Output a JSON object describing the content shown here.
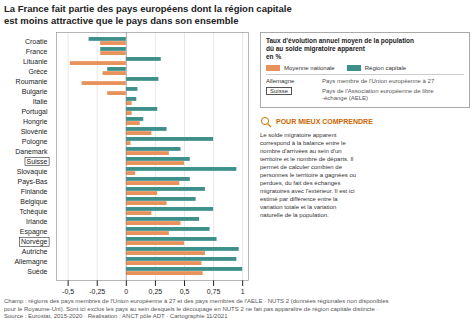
{
  "chart_data": {
    "type": "bar",
    "orientation": "horizontal",
    "title": "La France fait partie des pays européens dont la région capitale\nest moins attractive que le pays dans son ensemble",
    "categories": [
      "Croatie",
      "France",
      "Lituanie",
      "Grèce",
      "Roumanie",
      "Bulgarie",
      "Italie",
      "Portugal",
      "Hongrie",
      "Slovénie",
      "Pologne",
      "Danemark",
      "Suisse",
      "Slovaquie",
      "Pays-Bas",
      "Finlande",
      "Belgique",
      "Tchéquie",
      "Irlande",
      "Espagne",
      "Norvège",
      "Autriche",
      "Allemagne",
      "Suède"
    ],
    "series": [
      {
        "name": "Moyenne nationale",
        "color": "#e8915a",
        "values": [
          -0.22,
          -0.22,
          -0.48,
          -0.2,
          -0.38,
          -0.16,
          0.05,
          0.05,
          0.12,
          0.22,
          0.04,
          0.37,
          0.5,
          0.08,
          0.46,
          0.27,
          0.35,
          0.22,
          0.47,
          0.37,
          0.5,
          0.68,
          0.65,
          0.66
        ]
      },
      {
        "name": "Région capitale",
        "color": "#3d8f8a",
        "values": [
          -0.32,
          -0.22,
          0.3,
          -0.16,
          0.28,
          0.1,
          0.09,
          0.27,
          0.15,
          0.35,
          0.75,
          0.47,
          0.55,
          0.95,
          0.55,
          0.68,
          0.6,
          0.75,
          0.63,
          0.72,
          0.78,
          0.97,
          0.95,
          1.0
        ]
      }
    ],
    "xlim": [
      -0.6,
      1.05
    ],
    "xticks": [
      {
        "value": -0.5,
        "label": "-0,5"
      },
      {
        "value": -0.25,
        "label": "-0,25"
      },
      0,
      {
        "value": 0.25,
        "label": "0,25"
      },
      {
        "value": 0.5,
        "label": "0,5"
      },
      {
        "value": 0.75,
        "label": "0,75"
      },
      1
    ],
    "grid": true,
    "legend": "right",
    "legend_title": "Taux d'évolution annuel moyen de la population\ndû au solde migratoire apparent\nen %",
    "aele_countries": [
      "Suisse",
      "Norvège"
    ],
    "legend_notes": [
      {
        "label": "Allemagne",
        "text": "Pays membre de l'Union européenne à 27"
      },
      {
        "label": "Suisse",
        "text": "Pays de l'Association européenne de libre\n-échange (AELE)"
      }
    ],
    "notes": {
      "title": "POUR MIEUX COMPRENDRE",
      "text": "Le solde migratoire apparent\ncorrespond à la balance entre le\nnombre d'arrivées au sein d'un\nterritoire et le nombre de départs. Il\npermet de calculer combien de\npersonnes le territoire a gagnées ou\nperdues, du fait des échanges\nmigratoires avec l'extérieur. Il est ici\nestimé par différence entre la\nvariation totale et la variation\nnaturelle de la population."
    },
    "footnote": "Champ : régions des pays membres de l'Union européenne à 27 et des pays membres de l'AELE · NUTS 2 (données régionales non disponibles\npour le Royaume-Uni). Sont ici exclus les pays au sein desquels le découpage en NUTS 2 ne fait pas apparaître de région capitale distincte ·\nSource : Eurostat, 2015-2020 · Réalisation : ANCT pôle ADT · Cartographie 11/2021"
  }
}
